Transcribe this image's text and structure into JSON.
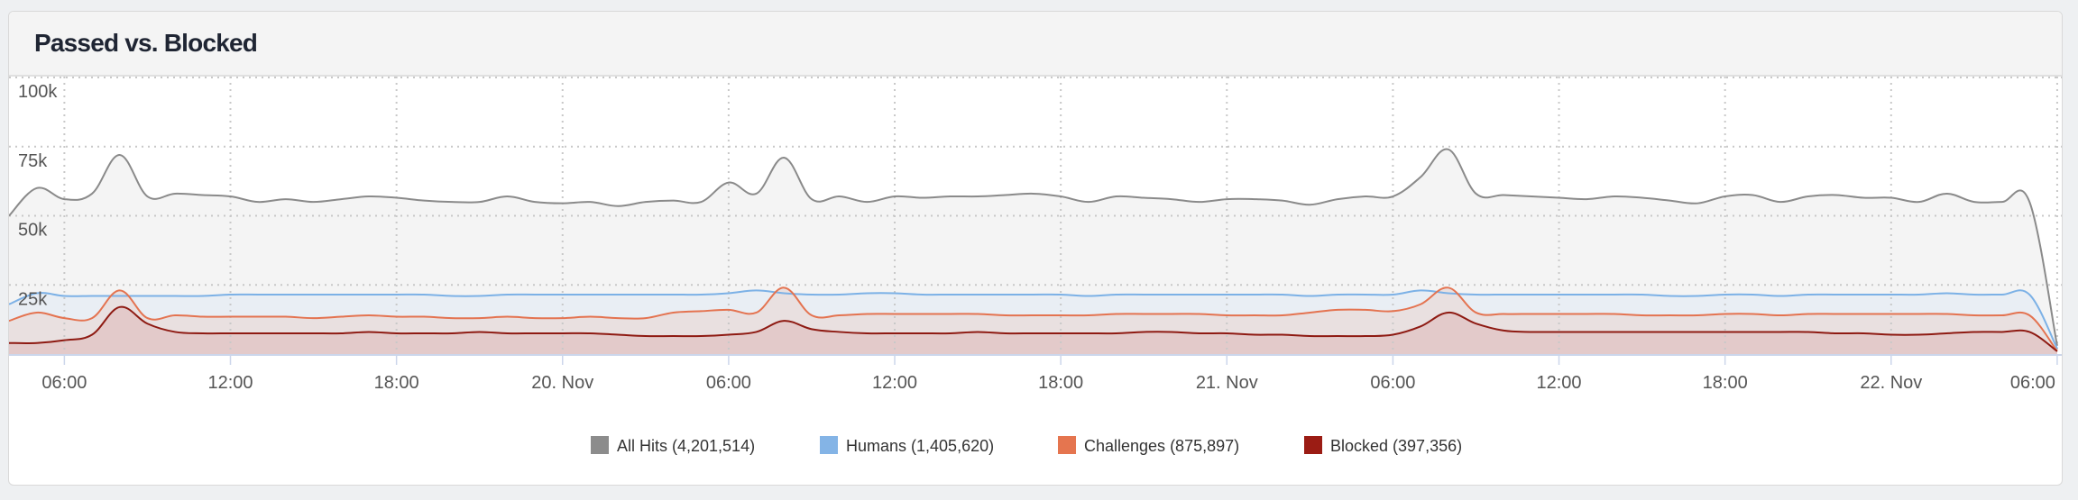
{
  "title": "Passed vs. Blocked",
  "chart_data": {
    "type": "area",
    "title": "Passed vs. Blocked",
    "x_unit": "hours since 19 Nov 04:00",
    "y_unit": "thousands of hits",
    "ylim": [
      0,
      100
    ],
    "xlim": [
      0,
      74.1
    ],
    "grid": true,
    "legend_position": "bottom-center",
    "y_ticks": [
      {
        "value": 25,
        "label": "25k"
      },
      {
        "value": 50,
        "label": "50k"
      },
      {
        "value": 75,
        "label": "75k"
      },
      {
        "value": 100,
        "label": "100k"
      }
    ],
    "x_ticks": [
      {
        "value": 2,
        "label": "06:00"
      },
      {
        "value": 8,
        "label": "12:00"
      },
      {
        "value": 14,
        "label": "18:00"
      },
      {
        "value": 20,
        "label": "20. Nov"
      },
      {
        "value": 26,
        "label": "06:00"
      },
      {
        "value": 32,
        "label": "12:00"
      },
      {
        "value": 38,
        "label": "18:00"
      },
      {
        "value": 44,
        "label": "21. Nov"
      },
      {
        "value": 50,
        "label": "06:00"
      },
      {
        "value": 56,
        "label": "12:00"
      },
      {
        "value": 62,
        "label": "18:00"
      },
      {
        "value": 68,
        "label": "22. Nov"
      },
      {
        "value": 74,
        "label": "06:00"
      }
    ],
    "series": [
      {
        "name": "All Hits",
        "legend": "All Hits (4,201,514)",
        "color": "#8c8c8c",
        "line": "#8a8a8a",
        "fill": "#f4f4f4",
        "values": [
          50,
          60,
          56,
          58,
          72,
          57,
          58,
          57.5,
          57,
          55,
          56,
          55,
          56,
          57,
          56.5,
          55.5,
          55,
          55,
          57,
          55,
          54.5,
          55,
          53.5,
          55,
          55.5,
          55,
          62,
          58,
          71,
          56,
          57,
          55,
          57,
          56.5,
          57,
          57,
          57.5,
          58,
          57,
          55,
          57,
          56.5,
          56,
          55,
          56,
          56,
          55.5,
          54,
          56,
          57,
          57,
          64,
          74,
          58,
          57.5,
          57,
          56.5,
          56,
          57,
          56.5,
          55.5,
          54.5,
          57,
          57.5,
          55,
          57,
          57.5,
          56.5,
          56.5,
          55,
          58,
          55,
          55,
          55,
          3
        ]
      },
      {
        "name": "Humans",
        "legend": "Humans (1,405,620)",
        "color": "#84b4e6",
        "line": "#7cb1e6",
        "fill": "#e9eef4",
        "values": [
          18,
          22,
          21,
          21,
          21,
          21,
          21,
          21,
          21.5,
          21.5,
          21.5,
          21.5,
          21.5,
          21.5,
          21.5,
          21.5,
          21,
          21,
          21.5,
          21.5,
          21.5,
          21.5,
          21.5,
          21.5,
          21.5,
          21.5,
          22,
          23,
          22,
          21.5,
          21.5,
          22,
          22,
          21.5,
          21.5,
          21.5,
          21.5,
          21.5,
          21.5,
          21,
          21.5,
          21.5,
          21.5,
          21.5,
          21.5,
          21.5,
          21.5,
          21,
          21.5,
          21.5,
          21.5,
          23,
          22,
          21.5,
          21.5,
          21.5,
          21.5,
          21.5,
          21.5,
          21.5,
          21,
          21,
          21.5,
          21.5,
          21,
          21.5,
          21.5,
          21.5,
          21.5,
          21.5,
          22,
          21.5,
          21.5,
          21.5,
          2
        ]
      },
      {
        "name": "Challenges",
        "legend": "Challenges (875,897)",
        "color": "#e5754f",
        "line": "#e47350",
        "fill": "#e9e0e0",
        "values": [
          12,
          15,
          13,
          13,
          23,
          13,
          14,
          13.5,
          13.5,
          13.5,
          13.5,
          13,
          13.5,
          14,
          13.5,
          13.5,
          13,
          13,
          13.5,
          13,
          13,
          13.5,
          13,
          13,
          15,
          15.5,
          16,
          15,
          24,
          14,
          14,
          14.5,
          14.5,
          14.5,
          14.5,
          14.5,
          14,
          14,
          14,
          14,
          14.5,
          14.5,
          14.5,
          14.5,
          14,
          14,
          14,
          15,
          16,
          16,
          15.5,
          18,
          24,
          15,
          14.5,
          14.5,
          14.5,
          14.5,
          14.5,
          14,
          14,
          14,
          14.5,
          14.5,
          14,
          14.5,
          14.5,
          14.5,
          14.5,
          14.5,
          14.5,
          14,
          14,
          14,
          1
        ]
      },
      {
        "name": "Blocked",
        "legend": "Blocked (397,356)",
        "color": "#9b1c14",
        "line": "#8e1a12",
        "fill": "#e3caca",
        "values": [
          4,
          4,
          5,
          7,
          17,
          11,
          8,
          7.5,
          7.5,
          7.5,
          7.5,
          7.5,
          7.5,
          8,
          7.5,
          7.5,
          7.5,
          8,
          7.5,
          7.5,
          7.5,
          7.5,
          7,
          6.5,
          6.5,
          6.5,
          7,
          8,
          12,
          9,
          8,
          7.5,
          7.5,
          7.5,
          7.5,
          8,
          7.5,
          7.5,
          7.5,
          7.5,
          7.5,
          8,
          8,
          7.5,
          7.5,
          7,
          7,
          6.5,
          6.5,
          6.5,
          7,
          10,
          15,
          11,
          8.5,
          8,
          8,
          8,
          8,
          8,
          8,
          8,
          8,
          8,
          8,
          8,
          7.5,
          7.5,
          7,
          7,
          7.5,
          8,
          8,
          8,
          1
        ]
      }
    ]
  }
}
